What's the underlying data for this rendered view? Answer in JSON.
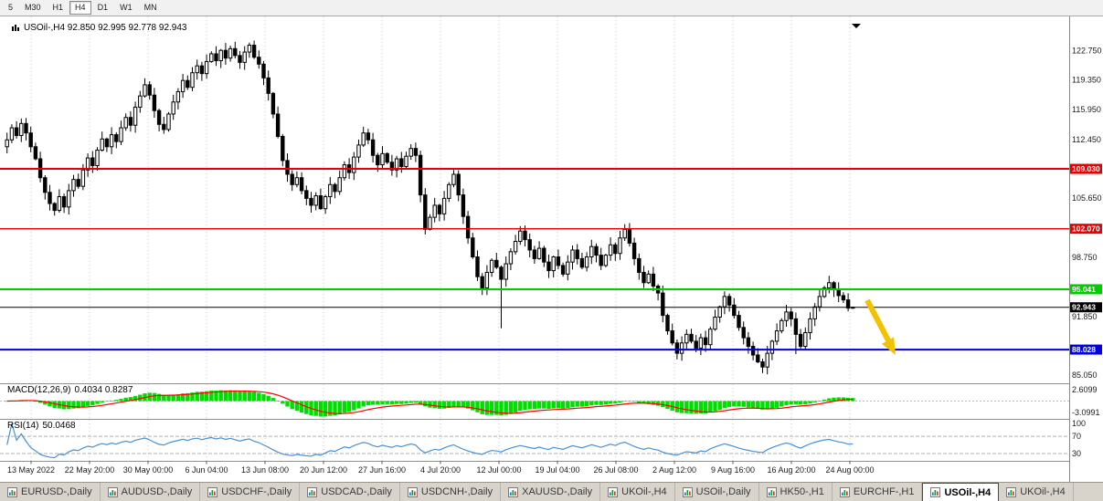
{
  "toolbar": {
    "timeframes": [
      {
        "label": "5",
        "active": false
      },
      {
        "label": "M30",
        "active": false
      },
      {
        "label": "H1",
        "active": false
      },
      {
        "label": "H4",
        "active": true
      },
      {
        "label": "D1",
        "active": false
      },
      {
        "label": "W1",
        "active": false
      },
      {
        "label": "MN",
        "active": false
      }
    ]
  },
  "chart": {
    "title": "USOil-,H4 92.850 92.995 92.778 92.943"
  },
  "chart_data": {
    "type": "candlestick",
    "symbol": "USOil-",
    "timeframe": "H4",
    "ohlc_display": {
      "open": "92.850",
      "high": "92.995",
      "low": "92.778",
      "close": "92.943"
    },
    "y_range": [
      84.6,
      125.5
    ],
    "closes": [
      112.4,
      113.8,
      112.9,
      114.3,
      113.2,
      111.6,
      110.2,
      108.0,
      106.3,
      105.0,
      104.2,
      105.8,
      104.6,
      106.5,
      107.8,
      107.0,
      108.9,
      110.3,
      109.4,
      111.2,
      112.5,
      111.6,
      113.0,
      112.2,
      113.8,
      115.0,
      114.1,
      116.2,
      117.5,
      118.8,
      117.6,
      115.8,
      114.2,
      113.6,
      115.4,
      116.8,
      118.0,
      119.3,
      118.5,
      120.2,
      121.0,
      120.1,
      121.5,
      122.4,
      121.6,
      122.8,
      121.9,
      123.0,
      122.2,
      121.4,
      122.6,
      123.4,
      122.0,
      121.2,
      119.6,
      117.8,
      115.4,
      112.8,
      110.0,
      108.4,
      107.2,
      108.0,
      106.5,
      105.6,
      104.8,
      105.9,
      104.4,
      105.8,
      107.2,
      106.4,
      108.0,
      109.5,
      108.6,
      110.4,
      111.8,
      113.2,
      112.4,
      110.6,
      109.5,
      110.8,
      109.8,
      108.9,
      110.2,
      109.3,
      110.5,
      111.4,
      110.6,
      106.0,
      102.0,
      103.4,
      104.8,
      103.8,
      105.6,
      107.2,
      108.4,
      106.0,
      103.5,
      101.0,
      98.8,
      96.5,
      95.2,
      97.0,
      98.4,
      97.6,
      96.2,
      98.0,
      99.4,
      100.6,
      101.8,
      100.8,
      99.6,
      98.6,
      99.8,
      98.2,
      97.2,
      98.8,
      97.8,
      96.8,
      98.2,
      99.6,
      98.6,
      97.6,
      98.8,
      100.0,
      99.0,
      97.8,
      99.0,
      100.2,
      99.2,
      101.0,
      102.0,
      100.4,
      98.6,
      97.0,
      95.8,
      96.8,
      95.4,
      94.6,
      92.0,
      90.2,
      88.8,
      87.6,
      88.8,
      89.8,
      89.0,
      88.2,
      89.4,
      88.6,
      90.4,
      91.8,
      93.0,
      94.2,
      93.2,
      92.0,
      90.6,
      89.4,
      88.4,
      87.4,
      86.6,
      86.0,
      87.6,
      89.0,
      90.2,
      91.4,
      92.4,
      91.6,
      89.8,
      88.4,
      90.0,
      91.6,
      93.0,
      94.2,
      95.2,
      95.8,
      95.0,
      94.3,
      93.8,
      92.85,
      92.943
    ],
    "wick_extremes": {
      "10": {
        "low": 103.6
      },
      "51": {
        "high": 123.7
      },
      "85": {
        "high": 111.9
      },
      "94": {
        "high": 108.9
      },
      "104": {
        "low": 90.5
      },
      "130": {
        "high": 102.6
      },
      "151": {
        "high": 94.8
      },
      "159": {
        "low": 85.3
      },
      "166": {
        "low": 87.5
      },
      "173": {
        "high": 96.6
      },
      "178": {
        "high": 92.995,
        "low": 92.778
      }
    },
    "price_axis_labels": [
      "122.750",
      "119.350",
      "115.950",
      "112.450",
      "105.650",
      "98.750",
      "91.850",
      "85.050"
    ],
    "levels": [
      {
        "price": 109.03,
        "label": "109.030",
        "color": "#e80000",
        "width": 2
      },
      {
        "price": 102.07,
        "label": "102.070",
        "color": "#e80000",
        "width": 1.4
      },
      {
        "price": 95.041,
        "label": "95.041",
        "color": "#00cc00",
        "width": 2
      },
      {
        "price": 92.943,
        "label": "92.943",
        "color": "#000000",
        "width": 1
      },
      {
        "price": 88.028,
        "label": "88.028",
        "color": "#0000e0",
        "width": 2
      }
    ],
    "time_labels": [
      "13 May 2022",
      "22 May 20:00",
      "30 May 00:00",
      "6 Jun 04:00",
      "13 Jun 08:00",
      "20 Jun 12:00",
      "27 Jun 16:00",
      "4 Jul 20:00",
      "12 Jul 00:00",
      "19 Jul 04:00",
      "26 Jul 08:00",
      "2 Aug 12:00",
      "9 Aug 16:00",
      "16 Aug 20:00",
      "24 Aug 00:00"
    ],
    "indicators": {
      "macd": {
        "title": "MACD(12,26,9)",
        "values_text": "0.4034 0.8287",
        "axis_labels": [
          "2.6099",
          "-3.0991"
        ]
      },
      "rsi": {
        "title": "RSI(14)",
        "value_text": "50.0468",
        "axis_labels": [
          "100",
          "70",
          "30"
        ],
        "levels": [
          70,
          30
        ]
      }
    }
  },
  "annotations": {
    "arrow": {
      "shape": "down-right-arrow",
      "color": "#f2c200"
    }
  },
  "tabs": {
    "items": [
      {
        "label": "EURUSD-,Daily",
        "active": false
      },
      {
        "label": "AUDUSD-,Daily",
        "active": false
      },
      {
        "label": "USDCHF-,Daily",
        "active": false
      },
      {
        "label": "USDCAD-,Daily",
        "active": false
      },
      {
        "label": "USDCNH-,Daily",
        "active": false
      },
      {
        "label": "XAUUSD-,Daily",
        "active": false
      },
      {
        "label": "UKOil-,H4",
        "active": false
      },
      {
        "label": "USOil-,Daily",
        "active": false
      },
      {
        "label": "HK50-,H1",
        "active": false
      },
      {
        "label": "EURCHF-,H1",
        "active": false
      },
      {
        "label": "USOil-,H4",
        "active": true
      },
      {
        "label": "UKOil-,H4",
        "active": false
      }
    ]
  },
  "colors": {
    "bull_candle": "#ffffff",
    "bear_candle": "#000000",
    "candle_border": "#000000",
    "grid": "#c9c9c9",
    "macd_histogram": "#00dd00",
    "macd_signal": "#ff0000",
    "rsi_line": "#4a90d2",
    "arrow": "#f2c200",
    "axis_text": "#1a1a1a",
    "separator": "#909090"
  }
}
